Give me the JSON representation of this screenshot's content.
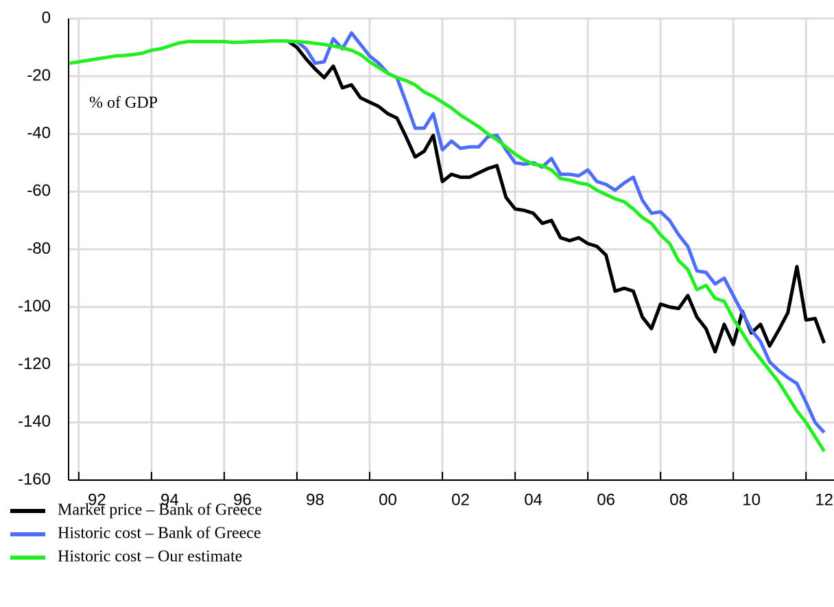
{
  "chart_data": {
    "type": "line",
    "annotation": "% of GDP",
    "x": [
      1991.75,
      1992,
      1992.25,
      1992.5,
      1992.75,
      1993,
      1993.25,
      1993.5,
      1993.75,
      1994,
      1994.25,
      1994.5,
      1994.75,
      1995,
      1995.25,
      1995.5,
      1995.75,
      1996,
      1996.25,
      1996.5,
      1996.75,
      1997,
      1997.25,
      1997.5,
      1997.75,
      1998,
      1998.25,
      1998.5,
      1998.75,
      1999,
      1999.25,
      1999.5,
      1999.75,
      2000,
      2000.25,
      2000.5,
      2000.75,
      2001,
      2001.25,
      2001.5,
      2001.75,
      2002,
      2002.25,
      2002.5,
      2002.75,
      2003,
      2003.25,
      2003.5,
      2003.75,
      2004,
      2004.25,
      2004.5,
      2004.75,
      2005,
      2005.25,
      2005.5,
      2005.75,
      2006,
      2006.25,
      2006.5,
      2006.75,
      2007,
      2007.25,
      2007.5,
      2007.75,
      2008,
      2008.25,
      2008.5,
      2008.75,
      2009,
      2009.25,
      2009.5,
      2009.75,
      2010,
      2010.25,
      2010.5,
      2010.75,
      2011,
      2011.25,
      2011.5,
      2011.75,
      2012,
      2012.25,
      2012.5
    ],
    "series": [
      {
        "name": "Market price – Bank of Greece",
        "color": "#000000",
        "values": [
          null,
          null,
          null,
          null,
          null,
          null,
          null,
          null,
          null,
          null,
          null,
          null,
          null,
          null,
          null,
          null,
          null,
          null,
          null,
          null,
          null,
          null,
          null,
          null,
          -7.8,
          -10,
          -14,
          -17.5,
          -20.5,
          -16.5,
          -24,
          -23,
          -27.5,
          -29,
          -30.5,
          -33,
          -34.5,
          -41,
          -48,
          -46,
          -40.5,
          -56.5,
          -54,
          -55,
          -55,
          -53.5,
          -52,
          -51,
          -62,
          -66,
          -66.5,
          -67.5,
          -71,
          -70,
          -76,
          -77,
          -76,
          -78,
          -79,
          -82,
          -94.5,
          -93.5,
          -94.5,
          -103.5,
          -107.5,
          -99,
          -100,
          -100.5,
          -96,
          -103.5,
          -107.5,
          -115.5,
          -106,
          -113,
          -101.5,
          -109,
          -106,
          -113.5,
          -108,
          -102,
          -86,
          -104.5,
          -104,
          -112.5
        ]
      },
      {
        "name": "Historic cost – Bank of Greece",
        "color": "#4f6ef7",
        "values": [
          null,
          null,
          null,
          null,
          null,
          null,
          null,
          null,
          null,
          null,
          null,
          null,
          null,
          null,
          null,
          null,
          null,
          null,
          null,
          null,
          null,
          null,
          null,
          null,
          -8,
          -8,
          -10.5,
          -15.5,
          -15,
          -7,
          -10.5,
          -5,
          -9,
          -13,
          -15.5,
          -19,
          -20.5,
          -29,
          -38,
          -38,
          -33,
          -45.5,
          -42.5,
          -45,
          -44.5,
          -44.5,
          -41,
          -40.5,
          -45.5,
          -50,
          -50.5,
          -50,
          -51.5,
          -48.5,
          -54,
          -54,
          -54.5,
          -52.5,
          -56.5,
          -57.5,
          -59.5,
          -57,
          -55,
          -63,
          -67.5,
          -67,
          -70,
          -75,
          -79,
          -87.5,
          -88,
          -92,
          -90,
          -96,
          -102,
          -108,
          -112,
          -119,
          -122,
          -124.5,
          -126.5,
          -133,
          -140,
          -143.5
        ]
      },
      {
        "name": "Historic cost – Our estimate",
        "color": "#22ee22",
        "values": [
          -15.5,
          -15,
          -14.5,
          -14,
          -13.5,
          -13,
          -12.8,
          -12.5,
          -12,
          -11,
          -10.5,
          -9.5,
          -8.5,
          -8,
          -8,
          -8,
          -8,
          -8,
          -8.3,
          -8.2,
          -8,
          -8,
          -7.8,
          -7.8,
          -7.8,
          -8,
          -8.2,
          -8.6,
          -9,
          -9.5,
          -10.2,
          -11,
          -12.5,
          -15,
          -17,
          -19,
          -20.5,
          -21.5,
          -23,
          -25.5,
          -27,
          -29,
          -31,
          -33.5,
          -35.5,
          -37.5,
          -40,
          -42,
          -44.5,
          -47,
          -49,
          -50.5,
          -51,
          -52.5,
          -55.5,
          -56,
          -57,
          -57.5,
          -59.5,
          -61,
          -62.5,
          -63.5,
          -66,
          -69,
          -71,
          -75,
          -78,
          -84,
          -87,
          -94,
          -92.5,
          -97,
          -98,
          -104,
          -109,
          -114,
          -118,
          -122,
          -126,
          -131,
          -136,
          -140,
          -145,
          -150
        ]
      }
    ],
    "xlim": [
      1991.72,
      2012.77
    ],
    "xticks": [
      {
        "value": 1992,
        "label": "92"
      },
      {
        "value": 1994,
        "label": "94"
      },
      {
        "value": 1996,
        "label": "96"
      },
      {
        "value": 1998,
        "label": "98"
      },
      {
        "value": 2000,
        "label": "00"
      },
      {
        "value": 2002,
        "label": "02"
      },
      {
        "value": 2004,
        "label": "04"
      },
      {
        "value": 2006,
        "label": "06"
      },
      {
        "value": 2008,
        "label": "08"
      },
      {
        "value": 2010,
        "label": "10"
      },
      {
        "value": 2012,
        "label": "12"
      }
    ],
    "ylim": [
      -160,
      0
    ],
    "yticks": [
      0,
      -20,
      -40,
      -60,
      -80,
      -100,
      -120,
      -140,
      -160
    ],
    "grid": true
  }
}
